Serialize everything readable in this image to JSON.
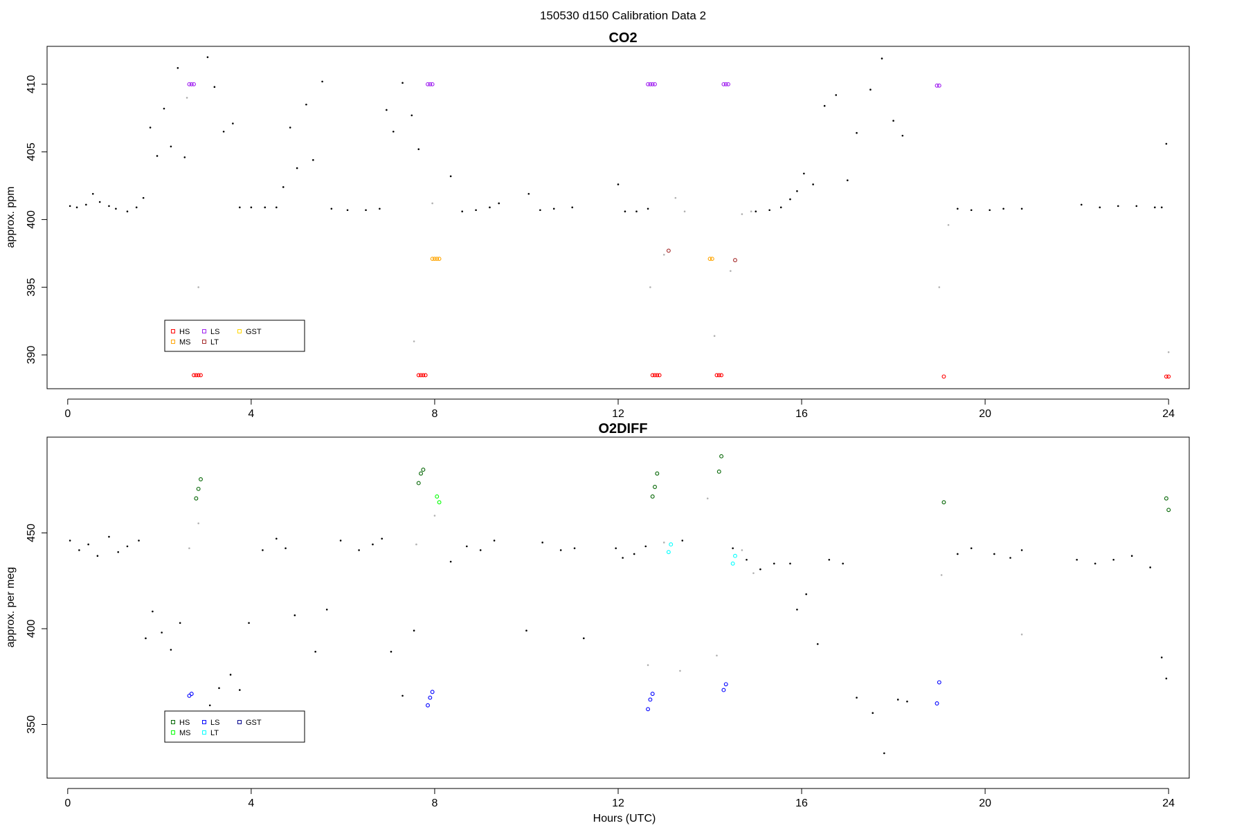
{
  "figure": {
    "title": "150530   d150   Calibration Data 2",
    "xlabel": "Hours (UTC)"
  },
  "chart_data": [
    {
      "type": "scatter",
      "title": "CO2",
      "xlabel": "",
      "ylabel": "approx. ppm",
      "xlim": [
        -0.45,
        24.45
      ],
      "ylim": [
        387.5,
        412.8
      ],
      "xticks": [
        0,
        4,
        8,
        12,
        16,
        20,
        24
      ],
      "yticks": [
        390,
        395,
        400,
        405,
        410
      ],
      "grid": false,
      "legend": {
        "placement": "bottom-left",
        "entries": [
          {
            "label": "HS",
            "color": "#ff0000"
          },
          {
            "label": "MS",
            "color": "#ffa500"
          },
          {
            "label": "LS",
            "color": "#a020f0"
          },
          {
            "label": "LT",
            "color": "#a52a2a"
          },
          {
            "label": "GST",
            "color": "#ffd700"
          }
        ]
      },
      "series": [
        {
          "name": "HS",
          "color": "#ff0000",
          "x": [
            2.75,
            2.8,
            2.85,
            2.9,
            7.65,
            7.7,
            7.75,
            7.8,
            12.75,
            12.8,
            12.85,
            12.9,
            14.15,
            14.2,
            14.25,
            19.1,
            23.95,
            24.0
          ],
          "y": [
            388.5,
            388.5,
            388.5,
            388.5,
            388.5,
            388.5,
            388.5,
            388.5,
            388.5,
            388.5,
            388.5,
            388.5,
            388.5,
            388.5,
            388.5,
            388.4,
            388.4,
            388.4
          ]
        },
        {
          "name": "MS",
          "color": "#ffa500",
          "x": [
            7.95,
            8.0,
            8.05,
            8.1,
            14.0,
            14.05
          ],
          "y": [
            397.1,
            397.1,
            397.1,
            397.1,
            397.1,
            397.1
          ]
        },
        {
          "name": "LS",
          "color": "#a020f0",
          "x": [
            2.65,
            2.7,
            2.75,
            7.85,
            7.9,
            7.95,
            12.65,
            12.7,
            12.75,
            12.8,
            14.3,
            14.35,
            14.4,
            18.95,
            19.0
          ],
          "y": [
            410.0,
            410.0,
            410.0,
            410.0,
            410.0,
            410.0,
            410.0,
            410.0,
            410.0,
            410.0,
            410.0,
            410.0,
            410.0,
            409.9,
            409.9
          ]
        },
        {
          "name": "LT",
          "color": "#a52a2a",
          "x": [
            13.1,
            14.55
          ],
          "y": [
            397.7,
            397.0
          ]
        },
        {
          "name": "",
          "color": "#000000",
          "x": [
            0.05,
            0.2,
            0.4,
            0.55,
            0.7,
            0.9,
            1.05,
            1.3,
            1.5,
            1.65,
            1.8,
            1.95,
            2.1,
            2.25,
            2.4,
            2.55,
            3.05,
            3.2,
            3.4,
            3.6,
            3.75,
            4.0,
            4.3,
            4.55,
            4.7,
            4.85,
            5.0,
            5.2,
            5.35,
            5.55,
            5.75,
            6.1,
            6.5,
            6.8,
            6.95,
            7.1,
            7.3,
            7.5,
            7.65,
            8.35,
            8.6,
            8.9,
            9.2,
            9.4,
            10.05,
            10.3,
            10.6,
            11.0,
            12.0,
            12.15,
            12.4,
            12.65,
            15.0,
            15.3,
            15.55,
            15.75,
            15.9,
            16.05,
            16.25,
            16.5,
            16.75,
            17.0,
            17.2,
            17.5,
            17.75,
            18.0,
            18.2,
            19.4,
            19.7,
            20.1,
            20.4,
            20.8,
            22.1,
            22.5,
            22.9,
            23.3,
            23.7,
            23.85,
            23.95
          ],
          "y": [
            401.0,
            400.9,
            401.1,
            401.9,
            401.3,
            401.0,
            400.8,
            400.6,
            400.9,
            401.6,
            406.8,
            404.7,
            408.2,
            405.4,
            411.2,
            404.6,
            412.0,
            409.8,
            406.5,
            407.1,
            400.9,
            400.9,
            400.9,
            400.9,
            402.4,
            406.8,
            403.8,
            408.5,
            404.4,
            410.2,
            400.8,
            400.7,
            400.7,
            400.8,
            408.1,
            406.5,
            410.1,
            407.7,
            405.2,
            403.2,
            400.6,
            400.7,
            400.9,
            401.2,
            401.9,
            400.7,
            400.8,
            400.9,
            402.6,
            400.6,
            400.6,
            400.8,
            400.6,
            400.7,
            400.9,
            401.5,
            402.1,
            403.4,
            402.6,
            408.4,
            409.2,
            402.9,
            406.4,
            409.6,
            411.9,
            407.3,
            406.2,
            400.8,
            400.7,
            400.7,
            400.8,
            400.8,
            401.1,
            400.9,
            401.0,
            401.0,
            400.9,
            400.9,
            405.6
          ],
          "color_note": "ambient"
        },
        {
          "name": "",
          "color": "#b0b0b0",
          "x": [
            2.6,
            2.85,
            7.55,
            7.95,
            12.7,
            13.0,
            13.25,
            13.45,
            14.1,
            14.45,
            14.7,
            14.9,
            19.0,
            19.2,
            24.0
          ],
          "y": [
            409.0,
            395.0,
            391.0,
            401.2,
            395.0,
            397.4,
            401.6,
            400.6,
            391.4,
            396.2,
            400.4,
            400.6,
            395.0,
            399.6,
            390.2
          ]
        }
      ]
    },
    {
      "type": "scatter",
      "title": "O2DIFF",
      "xlabel": "Hours (UTC)",
      "ylabel": "approx. per meg",
      "xlim": [
        -0.45,
        24.45
      ],
      "ylim": [
        322,
        500
      ],
      "xticks": [
        0,
        4,
        8,
        12,
        16,
        20,
        24
      ],
      "yticks": [
        350,
        400,
        450
      ],
      "grid": false,
      "legend": {
        "placement": "bottom-left",
        "entries": [
          {
            "label": "HS",
            "color": "#006400"
          },
          {
            "label": "MS",
            "color": "#00ff00"
          },
          {
            "label": "LS",
            "color": "#0000ff"
          },
          {
            "label": "LT",
            "color": "#00ffff"
          },
          {
            "label": "GST",
            "color": "#00008b"
          }
        ]
      },
      "series": [
        {
          "name": "HS",
          "color": "#006400",
          "x": [
            2.8,
            2.85,
            2.9,
            7.65,
            7.7,
            7.75,
            12.75,
            12.8,
            12.85,
            14.2,
            14.25,
            19.1,
            23.95,
            24.0
          ],
          "y": [
            468,
            473,
            478,
            476,
            481,
            483,
            469,
            474,
            481,
            482,
            490,
            466,
            468,
            462
          ],
          "extra_points": "approximate"
        },
        {
          "name": "MS",
          "color": "#00ff00",
          "x": [
            8.05,
            8.1
          ],
          "y": [
            469,
            466
          ]
        },
        {
          "name": "LS",
          "color": "#0000ff",
          "x": [
            2.65,
            2.7,
            7.85,
            7.9,
            7.95,
            12.65,
            12.7,
            12.75,
            14.3,
            14.35,
            18.95,
            19.0
          ],
          "y": [
            365,
            366,
            360,
            364,
            367,
            358,
            363,
            366,
            368,
            371,
            361,
            372
          ]
        },
        {
          "name": "LT",
          "color": "#00ffff",
          "x": [
            13.1,
            13.15,
            14.5,
            14.55
          ],
          "y": [
            440,
            444,
            434,
            438
          ]
        },
        {
          "name": "",
          "color": "#000000",
          "x": [
            0.05,
            0.25,
            0.45,
            0.65,
            0.9,
            1.1,
            1.3,
            1.55,
            1.7,
            1.85,
            2.05,
            2.25,
            2.45,
            3.1,
            3.3,
            3.55,
            3.75,
            3.95,
            4.25,
            4.55,
            4.75,
            4.95,
            5.15,
            5.4,
            5.65,
            5.95,
            6.35,
            6.65,
            6.85,
            7.05,
            7.3,
            7.55,
            8.35,
            8.7,
            9.0,
            9.3,
            10.0,
            10.35,
            10.75,
            11.05,
            11.25,
            11.95,
            12.1,
            12.35,
            12.6,
            13.4,
            14.5,
            14.8,
            15.1,
            15.4,
            15.75,
            15.9,
            16.1,
            16.35,
            16.6,
            16.9,
            17.2,
            17.55,
            17.8,
            18.1,
            18.3,
            19.4,
            19.7,
            20.2,
            20.55,
            20.8,
            22.0,
            22.4,
            22.8,
            23.2,
            23.6,
            23.85,
            23.95
          ],
          "y": [
            446,
            441,
            444,
            438,
            448,
            440,
            443,
            446,
            395,
            409,
            398,
            389,
            403,
            360,
            369,
            376,
            368,
            403,
            441,
            447,
            442,
            407,
            356,
            388,
            410,
            446,
            441,
            444,
            447,
            388,
            365,
            399,
            435,
            443,
            441,
            446,
            399,
            445,
            441,
            442,
            395,
            442,
            437,
            439,
            443,
            446,
            442,
            436,
            431,
            434,
            434,
            410,
            418,
            392,
            436,
            434,
            364,
            356,
            335,
            363,
            362,
            439,
            442,
            439,
            437,
            441,
            436,
            434,
            436,
            438,
            432,
            385,
            374
          ]
        },
        {
          "name": "",
          "color": "#b0b0b0",
          "x": [
            2.65,
            2.85,
            7.6,
            8.0,
            12.65,
            13.0,
            13.35,
            13.95,
            14.15,
            14.7,
            14.95,
            19.05,
            20.8
          ],
          "y": [
            442,
            455,
            444,
            459,
            381,
            445,
            378,
            468,
            386,
            441,
            429,
            428,
            397
          ]
        }
      ]
    }
  ]
}
